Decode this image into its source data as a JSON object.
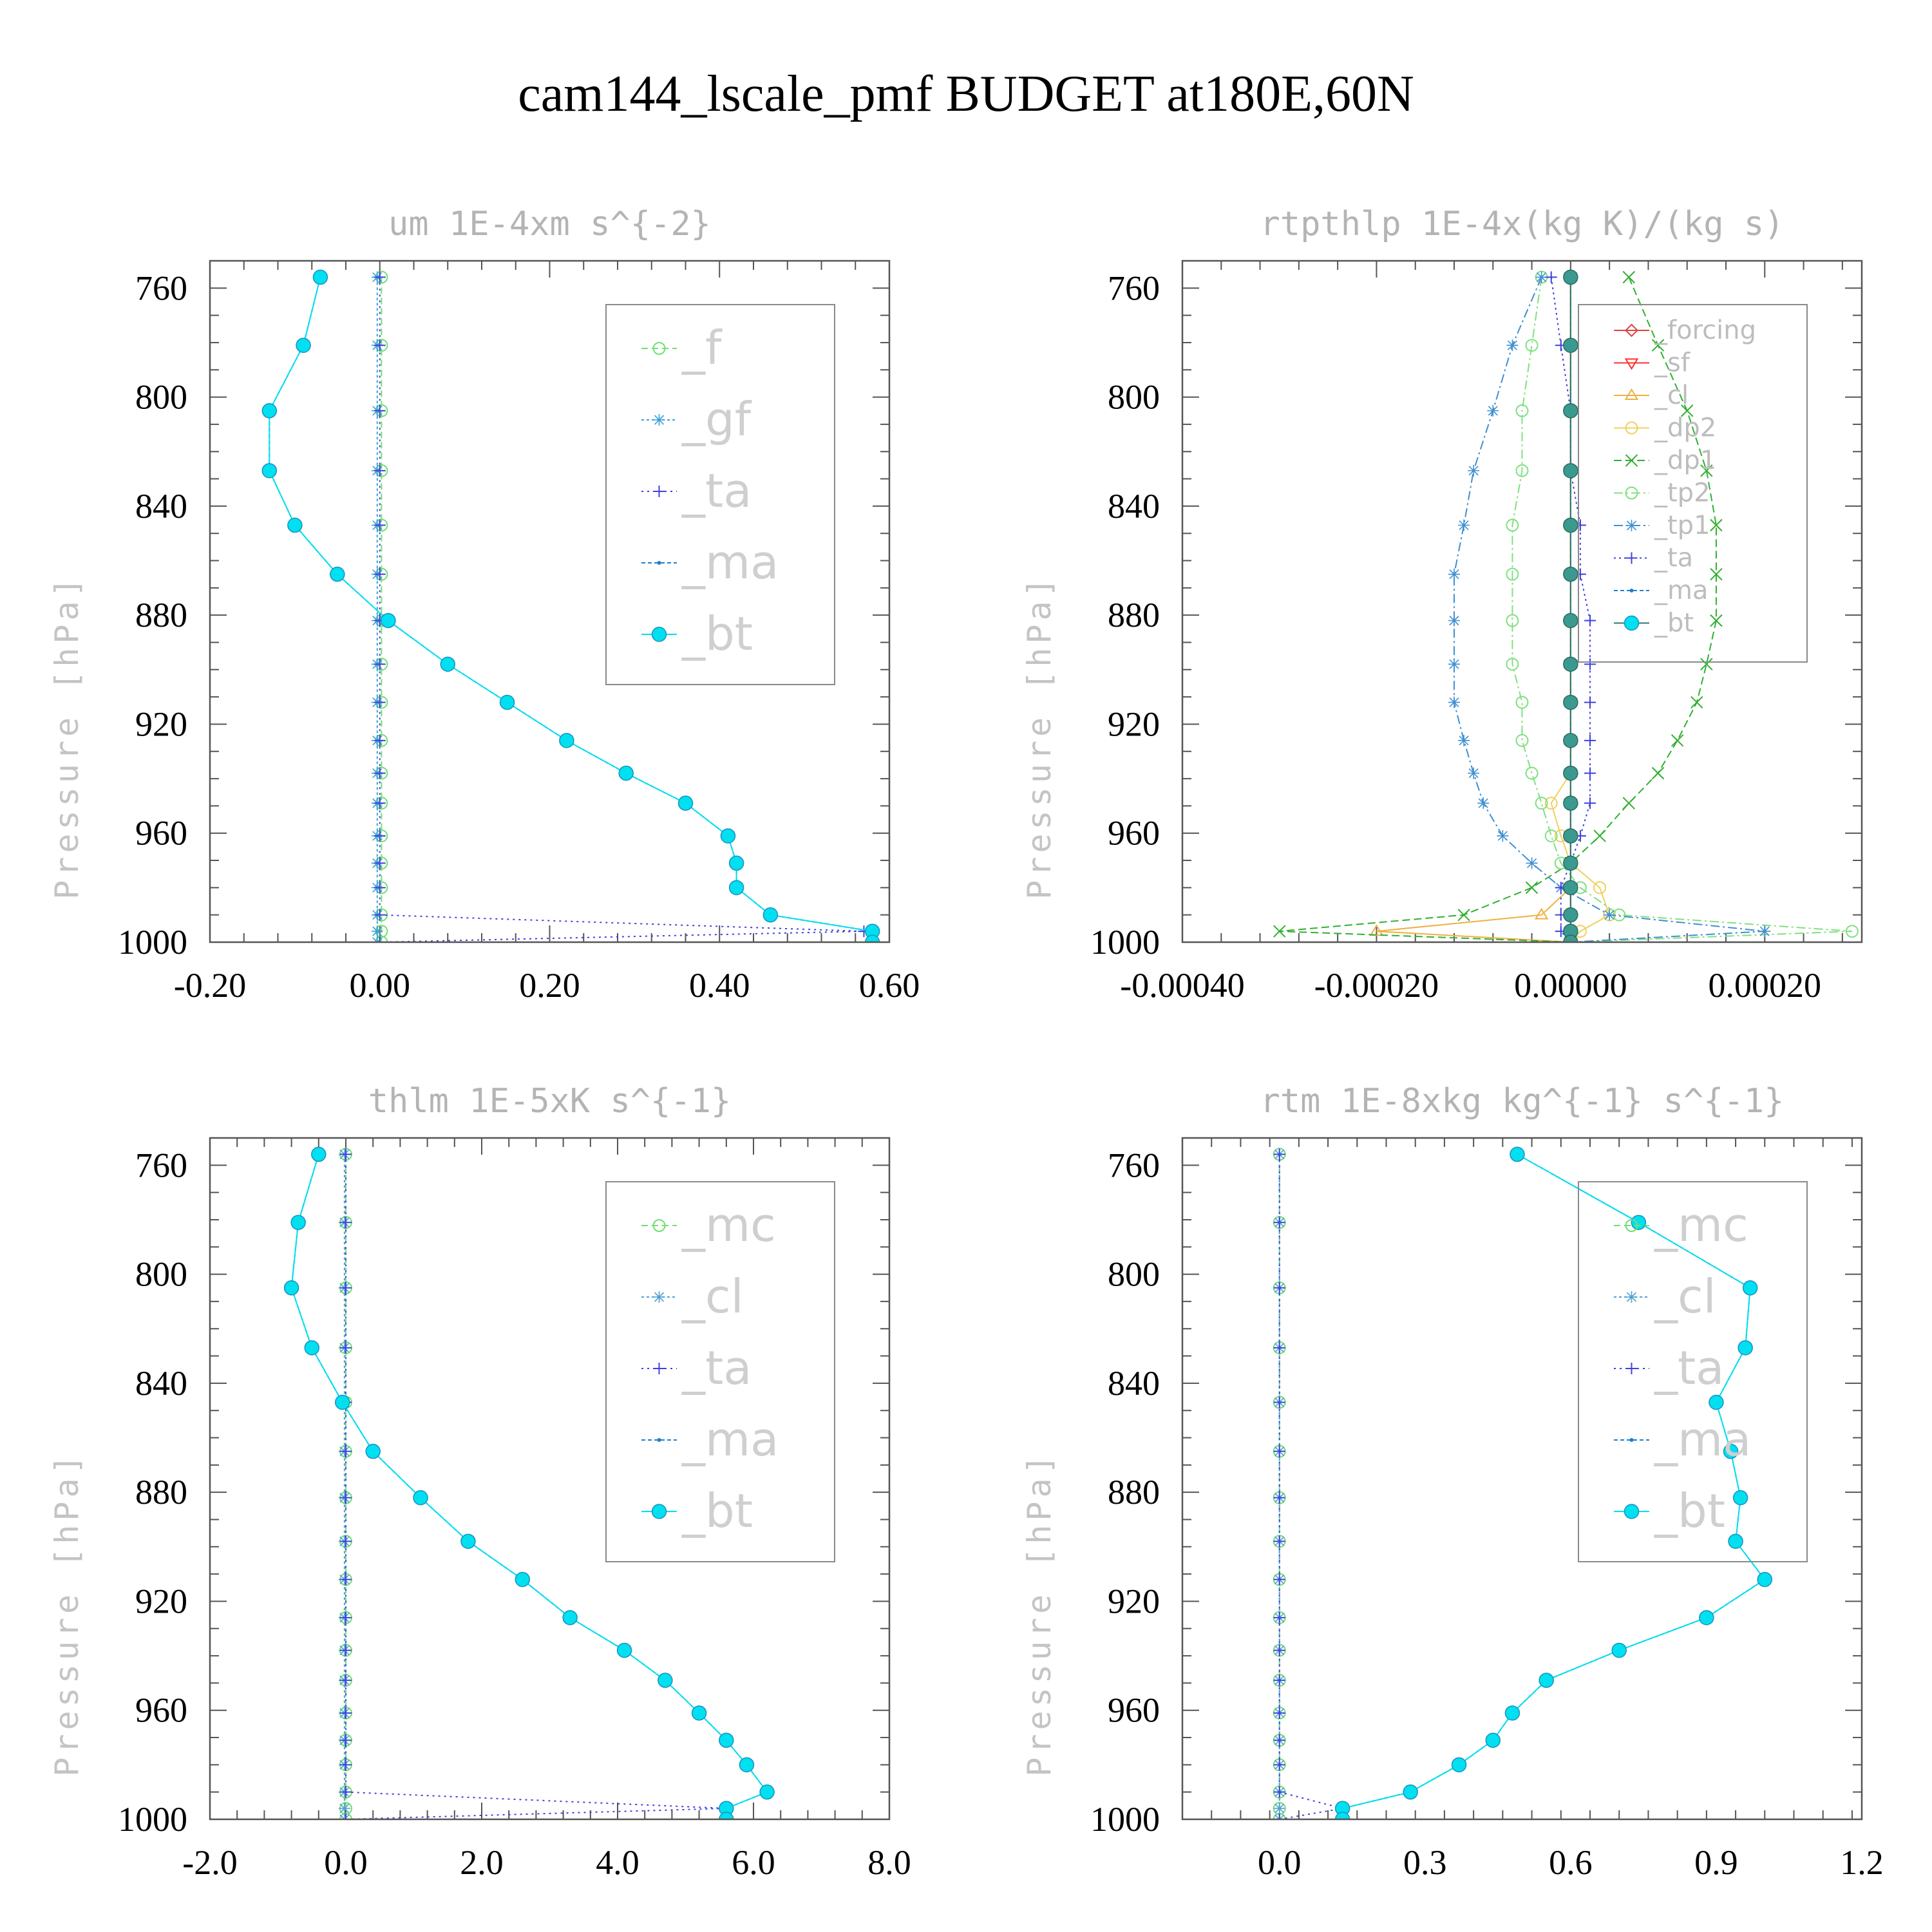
{
  "title": "cam144_lscale_pmf  BUDGET at180E,60N",
  "colors": {
    "f": "#6fe06f",
    "gf": "#3aa0d8",
    "ta": "#4040e0",
    "ma": "#1f7fd0",
    "bt": "#00e0f0",
    "forcing": "#e04040",
    "sf": "#ff3030",
    "cl_small": "#f0b040",
    "dp2": "#f0d060",
    "dp1": "#30b030",
    "tp2": "#80e080",
    "tp1": "#4090d0",
    "mc": "#70e070",
    "cl": "#50a0d0"
  },
  "chart_data": [
    {
      "type": "line",
      "title": "um  1E-4xm s^{-2}",
      "ylabel": "Pressure [hPa]",
      "xlim": [
        -0.2,
        0.6
      ],
      "ylim": [
        1000,
        750
      ],
      "xticks": [
        "-0.20",
        "0.00",
        "0.20",
        "0.40",
        "0.60"
      ],
      "yticks": [
        "760",
        "800",
        "840",
        "880",
        "920",
        "960",
        "1000"
      ],
      "pressure": [
        756,
        781,
        805,
        827,
        847,
        865,
        882,
        898,
        912,
        926,
        938,
        949,
        961,
        971,
        980,
        990,
        996,
        1000
      ],
      "legend": {
        "position": "right",
        "size": "big"
      },
      "series": [
        {
          "name": "_f",
          "key": "f",
          "marker": "circle",
          "dash": "10,6",
          "values": [
            0.002,
            0.002,
            0.002,
            0.002,
            0.002,
            0.002,
            0.002,
            0.002,
            0.002,
            0.002,
            0.002,
            0.002,
            0.002,
            0.002,
            0.002,
            0.002,
            0.002,
            0.002
          ]
        },
        {
          "name": "_gf",
          "key": "gf",
          "marker": "star",
          "dash": "4,4",
          "values": [
            -0.003,
            -0.003,
            -0.003,
            -0.003,
            -0.003,
            -0.003,
            -0.003,
            -0.003,
            -0.003,
            -0.003,
            -0.003,
            -0.003,
            -0.003,
            -0.003,
            -0.003,
            -0.003,
            -0.003,
            -0.003
          ]
        },
        {
          "name": "_ta",
          "key": "ta",
          "marker": "plus",
          "dash": "3,6",
          "values": [
            0,
            0,
            0,
            0,
            0,
            0,
            0,
            0,
            0,
            0,
            0,
            0,
            0,
            0,
            0,
            0,
            0.57,
            0.0
          ]
        },
        {
          "name": "_ma",
          "key": "ma",
          "marker": "dot",
          "dash": "6,4",
          "values": [
            -0.07,
            -0.09,
            -0.13,
            -0.13,
            -0.1,
            -0.05,
            0.01,
            0.08,
            0.15,
            0.22,
            0.29,
            0.36,
            0.41,
            0.42,
            0.42,
            0.46,
            0.58,
            0.58
          ]
        },
        {
          "name": "_bt",
          "key": "bt",
          "marker": "filled",
          "dash": "",
          "values": [
            -0.07,
            -0.09,
            -0.13,
            -0.13,
            -0.1,
            -0.05,
            0.01,
            0.08,
            0.15,
            0.22,
            0.29,
            0.36,
            0.41,
            0.42,
            0.42,
            0.46,
            0.58,
            0.58
          ]
        }
      ]
    },
    {
      "type": "line",
      "title": "rtpthlp  1E-4x(kg K)/(kg s)",
      "ylabel": "Pressure [hPa]",
      "xlim": [
        -0.0004,
        0.0003
      ],
      "ylim": [
        1000,
        750
      ],
      "xticks": [
        "-0.00040",
        "-0.00020",
        "0.00000",
        "0.00020"
      ],
      "yticks": [
        "760",
        "800",
        "840",
        "880",
        "920",
        "960",
        "1000"
      ],
      "pressure": [
        756,
        781,
        805,
        827,
        847,
        865,
        882,
        898,
        912,
        926,
        938,
        949,
        961,
        971,
        980,
        990,
        996,
        1000
      ],
      "legend": {
        "position": "right",
        "size": "small"
      },
      "series": [
        {
          "name": "_forcing",
          "key": "forcing",
          "marker": "diamond",
          "dash": "",
          "values": [
            0,
            0,
            0,
            0,
            0,
            0,
            0,
            0,
            0,
            0,
            0,
            0,
            0,
            0,
            0,
            0,
            0,
            0
          ]
        },
        {
          "name": "_sf",
          "key": "sf",
          "marker": "triangle",
          "dash": "",
          "values": [
            0,
            0,
            0,
            0,
            0,
            0,
            0,
            0,
            0,
            0,
            0,
            0,
            0,
            0,
            0,
            0,
            0,
            0
          ]
        },
        {
          "name": "_cl",
          "key": "cl_small",
          "marker": "triangle-up",
          "dash": "",
          "values": [
            0,
            0,
            0,
            0,
            0,
            0,
            0,
            0,
            0,
            0,
            0,
            0,
            0,
            0,
            0,
            -3e-05,
            -0.0002,
            0
          ]
        },
        {
          "name": "_dp2",
          "key": "dp2",
          "marker": "circle",
          "dash": "",
          "values": [
            0,
            0,
            0,
            0,
            0,
            0,
            0,
            0,
            0,
            0,
            0,
            -2e-05,
            -1e-05,
            0,
            3e-05,
            4e-05,
            1e-05,
            0
          ]
        },
        {
          "name": "_dp1",
          "key": "dp1",
          "marker": "cross",
          "dash": "12,6",
          "values": [
            6e-05,
            9e-05,
            0.00012,
            0.00014,
            0.00015,
            0.00015,
            0.00015,
            0.00014,
            0.00013,
            0.00011,
            9e-05,
            6e-05,
            3e-05,
            0,
            -4e-05,
            -0.00011,
            -0.0003,
            0
          ]
        },
        {
          "name": "_tp2",
          "key": "tp2",
          "marker": "circle",
          "dash": "14,5,3,5",
          "values": [
            -3e-05,
            -4e-05,
            -5e-05,
            -5e-05,
            -6e-05,
            -6e-05,
            -6e-05,
            -6e-05,
            -5e-05,
            -5e-05,
            -4e-05,
            -3e-05,
            -2e-05,
            -1e-05,
            1e-05,
            5e-05,
            0.00029,
            0
          ]
        },
        {
          "name": "_tp1",
          "key": "tp1",
          "marker": "star",
          "dash": "14,5,3,5",
          "values": [
            -3e-05,
            -6e-05,
            -8e-05,
            -0.0001,
            -0.00011,
            -0.00012,
            -0.00012,
            -0.00012,
            -0.00012,
            -0.00011,
            -0.0001,
            -9e-05,
            -7e-05,
            -4e-05,
            -1e-05,
            4e-05,
            0.0002,
            0
          ]
        },
        {
          "name": "_ta",
          "key": "ta",
          "marker": "plus",
          "dash": "3,5",
          "values": [
            -2e-05,
            -1e-05,
            0,
            0,
            1e-05,
            1e-05,
            2e-05,
            2e-05,
            2e-05,
            2e-05,
            2e-05,
            2e-05,
            1e-05,
            0,
            -1e-05,
            -1e-05,
            -1e-05,
            0
          ]
        },
        {
          "name": "_ma",
          "key": "ma",
          "marker": "dot",
          "dash": "6,4",
          "values": [
            0,
            0,
            0,
            0,
            0,
            0,
            0,
            0,
            0,
            0,
            0,
            0,
            0,
            0,
            0,
            0,
            0,
            0
          ]
        },
        {
          "name": "_bt",
          "key": "bt",
          "marker": "filled-dark",
          "dash": "",
          "values": [
            0,
            0,
            0,
            0,
            0,
            0,
            0,
            0,
            0,
            0,
            0,
            0,
            0,
            0,
            0,
            0,
            0,
            0
          ]
        }
      ]
    },
    {
      "type": "line",
      "title": "thlm  1E-5xK s^{-1}",
      "ylabel": "Pressure [hPa]",
      "xlim": [
        -2.0,
        8.0
      ],
      "ylim": [
        1000,
        750
      ],
      "xticks": [
        "-2.0",
        "0.0",
        "2.0",
        "4.0",
        "6.0",
        "8.0"
      ],
      "yticks": [
        "760",
        "800",
        "840",
        "880",
        "920",
        "960",
        "1000"
      ],
      "pressure": [
        756,
        781,
        805,
        827,
        847,
        865,
        882,
        898,
        912,
        926,
        938,
        949,
        961,
        971,
        980,
        990,
        996,
        1000
      ],
      "legend": {
        "position": "right",
        "size": "big"
      },
      "series": [
        {
          "name": "_mc",
          "key": "mc",
          "marker": "circle",
          "dash": "10,6",
          "values": [
            0,
            0,
            0,
            0,
            0,
            0,
            0,
            0,
            0,
            0,
            0,
            0,
            0,
            0,
            0,
            0,
            0,
            0
          ]
        },
        {
          "name": "_cl",
          "key": "cl",
          "marker": "star",
          "dash": "4,4",
          "values": [
            -0.02,
            -0.02,
            -0.02,
            -0.02,
            -0.02,
            -0.02,
            -0.02,
            -0.02,
            -0.02,
            -0.02,
            -0.02,
            -0.02,
            -0.02,
            -0.02,
            -0.02,
            -0.02,
            -0.02,
            -0.02
          ]
        },
        {
          "name": "_ta",
          "key": "ta",
          "marker": "plus",
          "dash": "3,6",
          "values": [
            0,
            0,
            0,
            0,
            0,
            0,
            0,
            0,
            0,
            0,
            0,
            0,
            0,
            0,
            0,
            0,
            5.6,
            0.0
          ]
        },
        {
          "name": "_ma",
          "key": "ma",
          "marker": "dot",
          "dash": "6,4",
          "values": [
            -0.4,
            -0.7,
            -0.8,
            -0.5,
            -0.05,
            0.4,
            1.1,
            1.8,
            2.6,
            3.3,
            4.1,
            4.7,
            5.2,
            5.6,
            5.9,
            6.2,
            5.6,
            5.6
          ]
        },
        {
          "name": "_bt",
          "key": "bt",
          "marker": "filled",
          "dash": "",
          "values": [
            -0.4,
            -0.7,
            -0.8,
            -0.5,
            -0.05,
            0.4,
            1.1,
            1.8,
            2.6,
            3.3,
            4.1,
            4.7,
            5.2,
            5.6,
            5.9,
            6.2,
            5.6,
            5.6
          ]
        }
      ]
    },
    {
      "type": "line",
      "title": "rtm  1E-8xkg kg^{-1} s^{-1}",
      "ylabel": "Pressure [hPa]",
      "xlim": [
        -0.2,
        1.2
      ],
      "ylim": [
        1000,
        750
      ],
      "xticks": [
        "0.0",
        "0.3",
        "0.6",
        "0.9",
        "1.2"
      ],
      "yticks": [
        "760",
        "800",
        "840",
        "880",
        "920",
        "960",
        "1000"
      ],
      "pressure": [
        756,
        781,
        805,
        827,
        847,
        865,
        882,
        898,
        912,
        926,
        938,
        949,
        961,
        971,
        980,
        990,
        996,
        1000
      ],
      "legend": {
        "position": "right",
        "size": "big"
      },
      "series": [
        {
          "name": "_mc",
          "key": "mc",
          "marker": "circle",
          "dash": "10,6",
          "values": [
            0,
            0,
            0,
            0,
            0,
            0,
            0,
            0,
            0,
            0,
            0,
            0,
            0,
            0,
            0,
            0,
            0,
            0
          ]
        },
        {
          "name": "_cl",
          "key": "cl",
          "marker": "star",
          "dash": "4,4",
          "values": [
            0,
            0,
            0,
            0,
            0,
            0,
            0,
            0,
            0,
            0,
            0,
            0,
            0,
            0,
            0,
            0,
            0,
            0
          ]
        },
        {
          "name": "_ta",
          "key": "ta",
          "marker": "plus",
          "dash": "3,6",
          "values": [
            0,
            0,
            0,
            0,
            0,
            0,
            0,
            0,
            0,
            0,
            0,
            0,
            0,
            0,
            0,
            0,
            0.13,
            0.0
          ]
        },
        {
          "name": "_ma",
          "key": "ma",
          "marker": "dot",
          "dash": "6,4",
          "values": [
            0.49,
            0.74,
            0.97,
            0.96,
            0.9,
            0.93,
            0.95,
            0.94,
            1.0,
            0.88,
            0.7,
            0.55,
            0.48,
            0.44,
            0.37,
            0.27,
            0.13,
            0.13
          ]
        },
        {
          "name": "_bt",
          "key": "bt",
          "marker": "filled",
          "dash": "",
          "values": [
            0.49,
            0.74,
            0.97,
            0.96,
            0.9,
            0.93,
            0.95,
            0.94,
            1.0,
            0.88,
            0.7,
            0.55,
            0.48,
            0.44,
            0.37,
            0.27,
            0.13,
            0.13
          ]
        }
      ]
    }
  ]
}
